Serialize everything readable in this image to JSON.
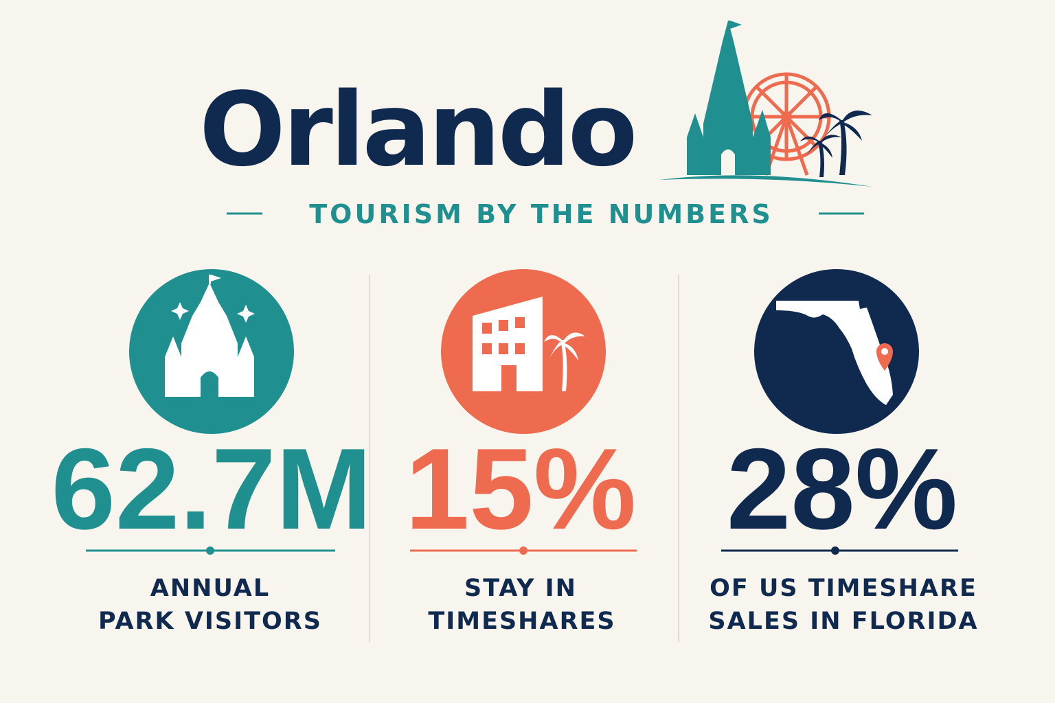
{
  "header": {
    "title": "Orlando",
    "subtitle": "TOURISM BY THE NUMBERS"
  },
  "stats": [
    {
      "value": "62.7M",
      "label": [
        "ANNUAL",
        "PARK VISITORS"
      ]
    },
    {
      "value": "15%",
      "label": [
        "STAY IN",
        "TIMESHARES"
      ]
    },
    {
      "value": "28%",
      "label": [
        "OF US TIMESHARE",
        "SALES IN FLORIDA"
      ]
    }
  ]
}
